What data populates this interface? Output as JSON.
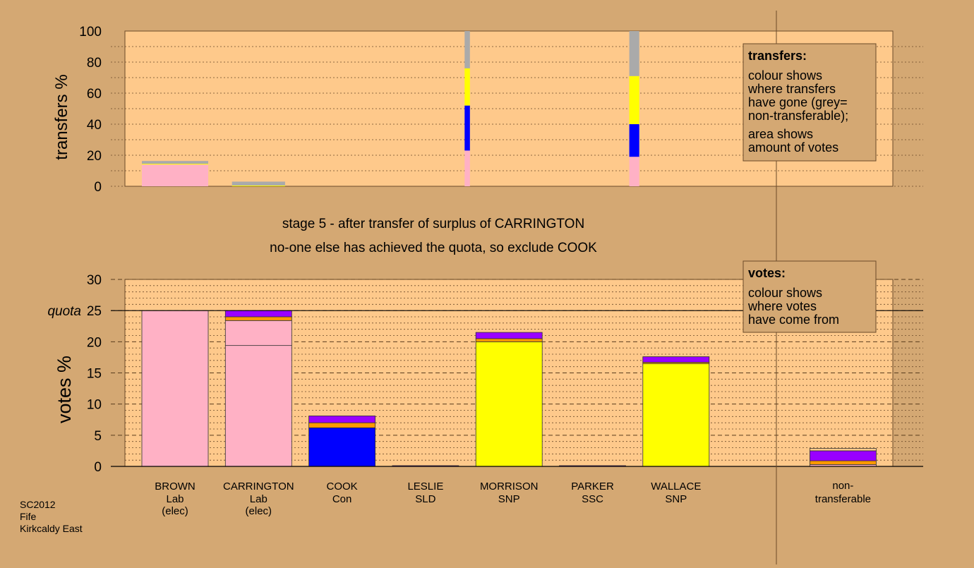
{
  "colors": {
    "background": "#d4a873",
    "plot_fill": "#fec98b",
    "Lab": "#ffb1c5",
    "Con": "#0000ff",
    "SNP": "#ffff00",
    "nontransferable": "#aaaaaa",
    "orange": "#ff9900",
    "purple": "#9900ff"
  },
  "stage_title": "stage 5 - after transfer of surplus of CARRINGTON",
  "stage_subtitle": "no-one else has achieved the quota, so exclude COOK",
  "footer": [
    "SC2012",
    "Fife",
    "Kirkcaldy East"
  ],
  "transfers_legend": {
    "title": "transfers:",
    "lines": [
      "colour shows",
      "where transfers",
      "have gone (grey=",
      "non-transferable);",
      "area shows",
      "amount of votes"
    ]
  },
  "votes_legend": {
    "title": "votes:",
    "lines": [
      "colour shows",
      "where votes",
      "have come from"
    ]
  },
  "chart_data": [
    {
      "type": "bar",
      "name": "transfers",
      "ylabel": "transfers %",
      "ylim": [
        0,
        100
      ],
      "yticks": [
        0,
        20,
        40,
        60,
        80,
        100
      ],
      "bars": [
        {
          "slot": 0,
          "width": 1.0,
          "segments": [
            {
              "color": "Lab",
              "value": 14
            },
            {
              "color": "SNP",
              "value": 0.5
            },
            {
              "color": "nontransferable",
              "value": 1.8
            }
          ]
        },
        {
          "slot": 1,
          "width": 0.8,
          "segments": [
            {
              "color": "SNP",
              "value": 0.5
            },
            {
              "color": "nontransferable",
              "value": 2.5
            }
          ]
        },
        {
          "slot": 3.5,
          "width": 0.08,
          "segments": [
            {
              "color": "Lab",
              "value": 23
            },
            {
              "color": "Con",
              "value": 29
            },
            {
              "color": "SNP",
              "value": 24
            },
            {
              "color": "nontransferable",
              "value": 24
            }
          ]
        },
        {
          "slot": 5.5,
          "width": 0.15,
          "segments": [
            {
              "color": "Lab",
              "value": 19
            },
            {
              "color": "Con",
              "value": 21
            },
            {
              "color": "SNP",
              "value": 31
            },
            {
              "color": "nontransferable",
              "value": 29
            }
          ]
        }
      ]
    },
    {
      "type": "bar",
      "name": "votes",
      "ylabel": "votes %",
      "ylim": [
        0,
        30
      ],
      "yticks": [
        0,
        5,
        10,
        15,
        20,
        25,
        30
      ],
      "quota": 25,
      "quota_label": "quota",
      "candidates": [
        {
          "name": "BROWN",
          "party": "Lab",
          "note": "(elec)",
          "segments": [
            {
              "color": "Lab",
              "value": 25
            }
          ]
        },
        {
          "name": "CARRINGTON",
          "party": "Lab",
          "note": "(elec)",
          "segments": [
            {
              "color": "Lab",
              "value": 19.4
            },
            {
              "color": "Lab",
              "value": 4
            },
            {
              "color": "orange",
              "value": 0.6
            },
            {
              "color": "purple",
              "value": 1
            }
          ]
        },
        {
          "name": "COOK",
          "party": "Con",
          "note": "",
          "segments": [
            {
              "color": "Con",
              "value": 6.2
            },
            {
              "color": "orange",
              "value": 0.8
            },
            {
              "color": "purple",
              "value": 1.1
            }
          ]
        },
        {
          "name": "LESLIE",
          "party": "SLD",
          "note": "",
          "segments": [
            {
              "color": "purple",
              "value": 0.12
            }
          ]
        },
        {
          "name": "MORRISON",
          "party": "SNP",
          "note": "",
          "segments": [
            {
              "color": "SNP",
              "value": 20
            },
            {
              "color": "orange",
              "value": 0.5
            },
            {
              "color": "purple",
              "value": 1
            }
          ]
        },
        {
          "name": "PARKER",
          "party": "SSC",
          "note": "",
          "segments": [
            {
              "color": "purple",
              "value": 0.12
            }
          ]
        },
        {
          "name": "WALLACE",
          "party": "SNP",
          "note": "",
          "segments": [
            {
              "color": "SNP",
              "value": 16.5
            },
            {
              "color": "orange",
              "value": 0.2
            },
            {
              "color": "purple",
              "value": 0.9
            }
          ]
        }
      ],
      "nontransferable": {
        "label1": "non-",
        "label2": "transferable",
        "segments": [
          {
            "color": "Lab",
            "value": 0.3
          },
          {
            "color": "orange",
            "value": 0.6
          },
          {
            "color": "purple",
            "value": 1.6
          },
          {
            "color": "plot_fill",
            "value": 0.4
          }
        ]
      }
    }
  ]
}
